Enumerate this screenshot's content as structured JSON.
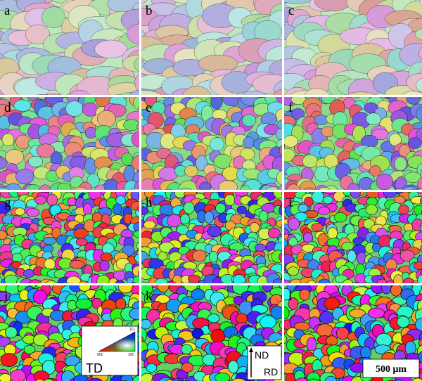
{
  "panels": [
    {
      "label": "a"
    },
    {
      "label": "b"
    },
    {
      "label": "c"
    },
    {
      "label": "d"
    },
    {
      "label": "e"
    },
    {
      "label": "f"
    },
    {
      "label": "g"
    },
    {
      "label": "h"
    },
    {
      "label": "i"
    },
    {
      "label": "j"
    },
    {
      "label": "k"
    },
    {
      "label": "l"
    }
  ],
  "ipf_legend": {
    "direction": "TD",
    "corners": [
      "001",
      "101",
      "111"
    ]
  },
  "axes": {
    "vertical": "ND",
    "horizontal": "RD"
  },
  "scale_bar": "500 μm"
}
